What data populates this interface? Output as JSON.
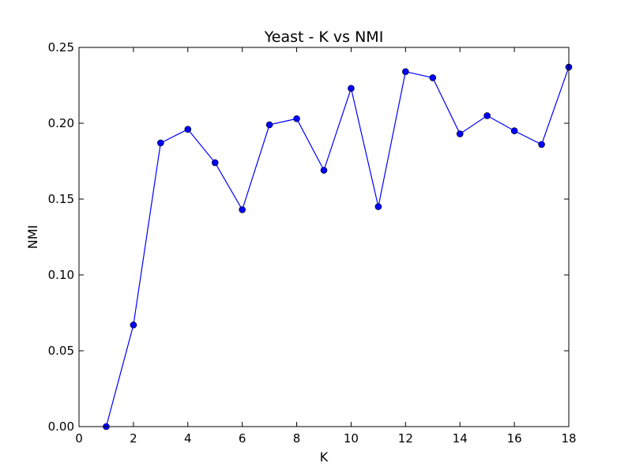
{
  "chart_data": {
    "type": "line",
    "title": "Yeast - K vs NMI",
    "xlabel": "K",
    "ylabel": "NMI",
    "xlim": [
      0,
      18
    ],
    "ylim": [
      0,
      0.25
    ],
    "x_ticks": [
      0,
      2,
      4,
      6,
      8,
      10,
      12,
      14,
      16,
      18
    ],
    "x_tick_labels": [
      "0",
      "2",
      "4",
      "6",
      "8",
      "10",
      "12",
      "14",
      "16",
      "18"
    ],
    "y_ticks": [
      0,
      0.05,
      0.1,
      0.15,
      0.2,
      0.25
    ],
    "y_tick_labels": [
      "0.00",
      "0.05",
      "0.10",
      "0.15",
      "0.20",
      "0.25"
    ],
    "grid": false,
    "legend": "none",
    "series": [
      {
        "color": "#0000ff",
        "marker": "circle",
        "x": [
          1,
          2,
          3,
          4,
          5,
          6,
          7,
          8,
          9,
          10,
          11,
          12,
          13,
          14,
          15,
          16,
          17,
          18
        ],
        "y": [
          0.0,
          0.067,
          0.187,
          0.196,
          0.174,
          0.143,
          0.199,
          0.203,
          0.169,
          0.223,
          0.145,
          0.234,
          0.23,
          0.193,
          0.205,
          0.195,
          0.186,
          0.237
        ]
      }
    ]
  }
}
